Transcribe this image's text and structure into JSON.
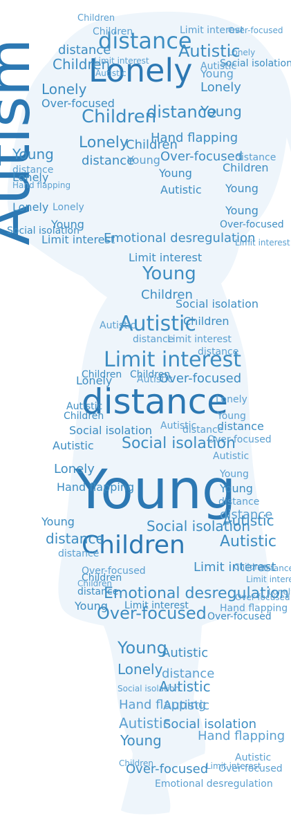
{
  "colors": {
    "background": "#ffffff",
    "silhouette": "#eef5fb",
    "word_primary": "#3d8dc2",
    "word_dark": "#2c78b3",
    "word_light": "#5a9fd0"
  },
  "words": {
    "autism": "Autism",
    "young": "Young",
    "distance": "distance",
    "lonely": "Lonely",
    "children": "Children",
    "autistic": "Autistic",
    "limit_interest": "Limit interest",
    "over_focused": "Over-focused",
    "hand_flapping": "Hand flapping",
    "social_isolation": "Social isolation",
    "emotional_desregulation": "Emotional desregulation"
  }
}
